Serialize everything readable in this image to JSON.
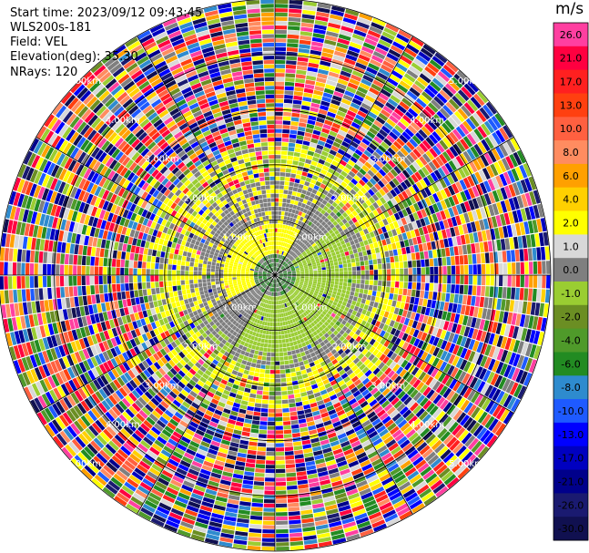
{
  "info": {
    "start_time": "Start time: 2023/09/12 09:43:45",
    "site": "WLS200s-181",
    "field": "Field: VEL",
    "elevation": "Elevation(deg): 35.30",
    "nrays": "NRays: 120"
  },
  "colorbar": {
    "unit": "m/s",
    "levels": [
      {
        "label": "26.0",
        "color": "#ff3fa0"
      },
      {
        "label": "21.0",
        "color": "#ff0040"
      },
      {
        "label": "17.0",
        "color": "#ff2020"
      },
      {
        "label": "13.0",
        "color": "#ff4010"
      },
      {
        "label": "10.0",
        "color": "#ff6040"
      },
      {
        "label": "8.0",
        "color": "#ff8c60"
      },
      {
        "label": "6.0",
        "color": "#ffa000"
      },
      {
        "label": "4.0",
        "color": "#ffd000"
      },
      {
        "label": "2.0",
        "color": "#ffff00"
      },
      {
        "label": "1.0",
        "color": "#d8d8d8"
      },
      {
        "label": "0.0",
        "color": "#7f7f7f"
      },
      {
        "label": "-1.0",
        "color": "#9acd32"
      },
      {
        "label": "-2.0",
        "color": "#6b8e23"
      },
      {
        "label": "-4.0",
        "color": "#4f9a2a"
      },
      {
        "label": "-6.0",
        "color": "#228b22"
      },
      {
        "label": "-8.0",
        "color": "#2e8bce"
      },
      {
        "label": "-10.0",
        "color": "#1e5aff"
      },
      {
        "label": "-13.0",
        "color": "#0000ff"
      },
      {
        "label": "-17.0",
        "color": "#0000c0"
      },
      {
        "label": "-21.0",
        "color": "#00008b"
      },
      {
        "label": "-26.0",
        "color": "#1a1a70"
      },
      {
        "label": "-30.0",
        "color": "#101050"
      }
    ]
  },
  "chart_data": {
    "type": "heatmap",
    "projection": "polar PPI",
    "field": "VEL",
    "unit": "m/s",
    "n_rays": 120,
    "elevation_deg": 35.3,
    "max_range_km": 5.0,
    "range_rings_km": [
      1.0,
      2.0,
      3.0,
      4.0,
      5.0
    ],
    "ring_labels": [
      "1.00km",
      "2.00km",
      "3.00km",
      "4.00km",
      "5.00km"
    ],
    "clim": [
      -30.0,
      26.0
    ],
    "inner_region_km": 2.0,
    "inner_region_pattern": "grey (~0 m/s) near-field with yellow (~2 m/s) sector to the west/north and green (~-2 m/s) sector to the east/south",
    "outer_region_pattern": "noise: random colours across full colour scale beyond ~2 km"
  }
}
